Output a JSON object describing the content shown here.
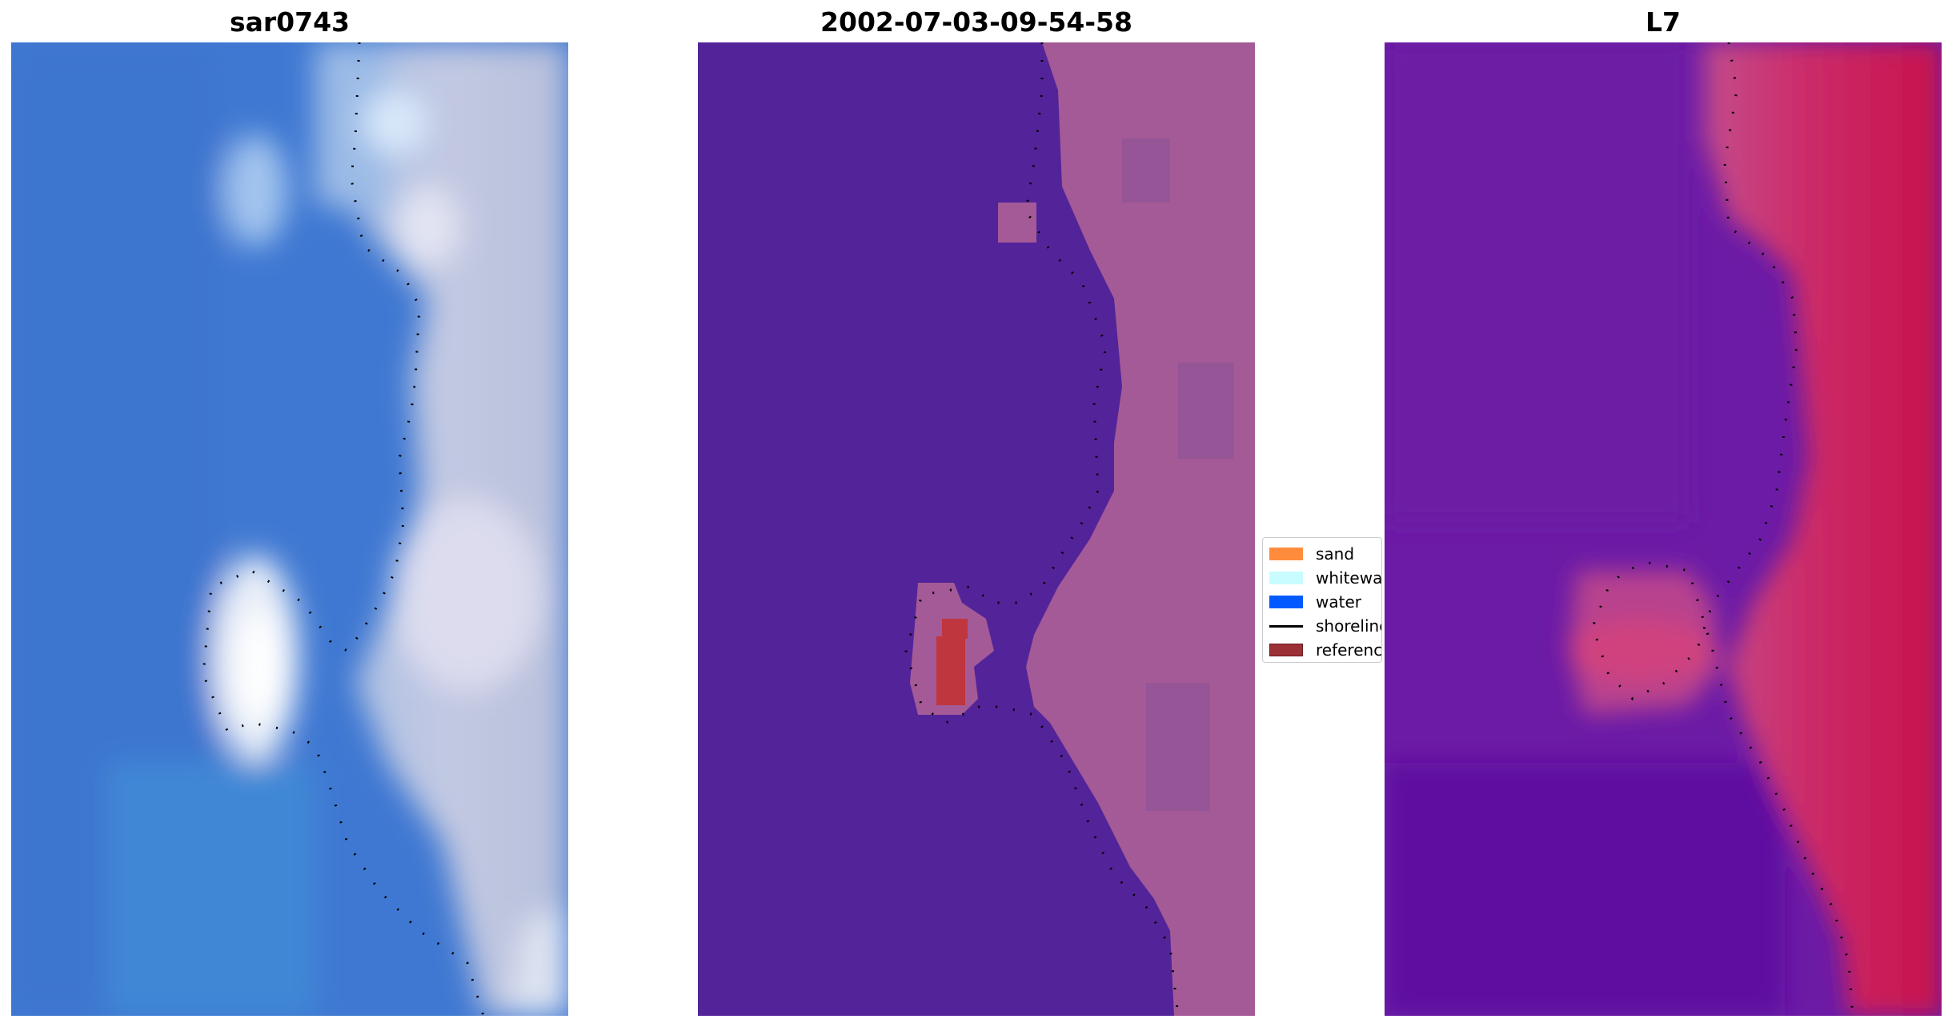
{
  "panels": [
    {
      "title": "sar0743"
    },
    {
      "title": "2002-07-03-09-54-58"
    },
    {
      "title": "L7"
    }
  ],
  "legend": {
    "items": [
      {
        "label": "sand",
        "color": "#ff8c3c"
      },
      {
        "label": "whitewater",
        "color": "#c8fcff"
      },
      {
        "label": "water",
        "color": "#005aff"
      },
      {
        "label": "shoreline",
        "color": "#000000"
      },
      {
        "label": "reference",
        "color": "#9b3036"
      }
    ]
  },
  "colors": {
    "rgb_water": "#3f7bd3",
    "rgb_land": "#c9cde3",
    "class_water": "#53239a",
    "class_land": "#a35a96",
    "class_reference": "#c0363f",
    "index_water": "#6e1aa2",
    "index_land": "#cc1450"
  }
}
